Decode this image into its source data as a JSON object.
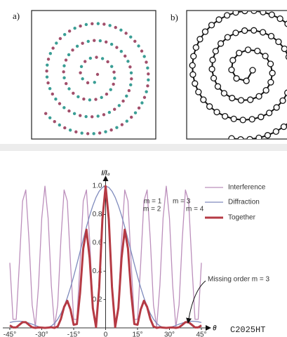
{
  "panel_labels": [
    "a)",
    "b)"
  ],
  "watermark": "C2025HT",
  "chart_data": {
    "type": "line",
    "ylabel": "I/I₀",
    "xlabel": "θ",
    "x": [
      -45,
      -43.5,
      -42,
      -40.5,
      -39,
      -37.5,
      -36,
      -34.5,
      -33,
      -31.5,
      -30,
      -28.5,
      -27,
      -25.5,
      -24,
      -22.5,
      -21,
      -19.5,
      -18,
      -16.5,
      -15,
      -13.5,
      -12,
      -10.5,
      -9,
      -7.5,
      -6,
      -4.5,
      -3,
      -1.5,
      0,
      1.5,
      3,
      4.5,
      6,
      7.5,
      9,
      10.5,
      12,
      13.5,
      15,
      16.5,
      18,
      19.5,
      21,
      22.5,
      24,
      25.5,
      27,
      28.5,
      30,
      31.5,
      33,
      34.5,
      36,
      37.5,
      39,
      40.5,
      42,
      43.5,
      45
    ],
    "series": [
      {
        "name": "Interference",
        "color": "#bc8fbc",
        "width": 1.3,
        "values": [
          0.459,
          0.06,
          0.06,
          0.459,
          0.895,
          0.973,
          0.623,
          0.161,
          0.007,
          0.299,
          0.774,
          1,
          0.774,
          0.299,
          0.007,
          0.161,
          0.623,
          0.973,
          0.895,
          0.459,
          0.06,
          0.06,
          0.459,
          0.895,
          0.973,
          0.623,
          0.161,
          0.007,
          0.299,
          0.774,
          1,
          0.774,
          0.299,
          0.007,
          0.161,
          0.623,
          0.973,
          0.895,
          0.459,
          0.06,
          0.06,
          0.459,
          0.895,
          0.973,
          0.623,
          0.161,
          0.007,
          0.299,
          0.774,
          1,
          0.774,
          0.299,
          0.007,
          0.161,
          0.623,
          0.973,
          0.895,
          0.459,
          0.06,
          0.06,
          0.459
        ]
      },
      {
        "name": "Diffraction",
        "color": "#7f8bbd",
        "width": 1.3,
        "values": [
          0.038,
          0.043,
          0.046,
          0.047,
          0.045,
          0.041,
          0.034,
          0.026,
          0.017,
          0.0087,
          0.0025,
          0,
          0.003,
          0.013,
          0.032,
          0.061,
          0.101,
          0.152,
          0.213,
          0.284,
          0.363,
          0.449,
          0.537,
          0.626,
          0.712,
          0.792,
          0.862,
          0.921,
          0.964,
          0.991,
          1,
          0.991,
          0.964,
          0.921,
          0.862,
          0.792,
          0.712,
          0.626,
          0.537,
          0.449,
          0.363,
          0.284,
          0.213,
          0.152,
          0.101,
          0.061,
          0.032,
          0.013,
          0.003,
          0,
          0.0025,
          0.0087,
          0.017,
          0.026,
          0.034,
          0.041,
          0.045,
          0.047,
          0.046,
          0.043,
          0.038
        ]
      },
      {
        "name": "Together",
        "color": "#b53a44",
        "width": 3,
        "values": [
          0.017,
          0.003,
          0.003,
          0.022,
          0.04,
          0.04,
          0.021,
          0.004,
          0,
          0.003,
          0.002,
          0,
          0.002,
          0.004,
          0,
          0.01,
          0.063,
          0.148,
          0.191,
          0.13,
          0.022,
          0.027,
          0.246,
          0.56,
          0.693,
          0.493,
          0.139,
          0.006,
          0.288,
          0.767,
          1,
          0.767,
          0.288,
          0.006,
          0.139,
          0.493,
          0.693,
          0.56,
          0.246,
          0.027,
          0.022,
          0.13,
          0.191,
          0.148,
          0.063,
          0.01,
          0,
          0.004,
          0.002,
          0,
          0.002,
          0.003,
          0,
          0.004,
          0.021,
          0.04,
          0.04,
          0.022,
          0.003,
          0.003,
          0.017
        ]
      }
    ],
    "xlim": [
      -45,
      45
    ],
    "ylim": [
      0,
      1.05
    ],
    "xticks": [
      {
        "value": -45,
        "label": "-45°"
      },
      {
        "value": -30,
        "label": "-30°"
      },
      {
        "value": -15,
        "label": "-15°"
      },
      0,
      {
        "value": 15,
        "label": "15°"
      },
      {
        "value": 30,
        "label": "30°"
      },
      {
        "value": 45,
        "label": "45°"
      }
    ],
    "yticks": [
      0.2,
      0.4,
      0.6,
      0.8,
      {
        "value": 1,
        "label": "1.0"
      }
    ],
    "annotations": [
      "m = 1",
      "m = 2",
      "m = 3",
      "m = 4",
      "Missing order m = 3"
    ]
  }
}
